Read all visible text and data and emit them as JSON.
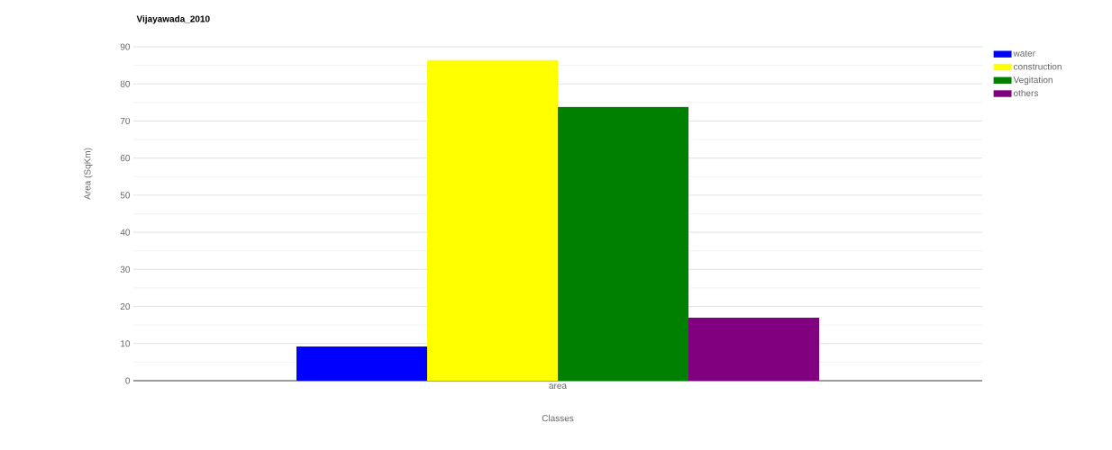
{
  "chart_data": {
    "type": "bar",
    "title": "Vijayawada_2010",
    "xlabel": "Classes",
    "ylabel": "Area (SqKm)",
    "categories": [
      "area"
    ],
    "series": [
      {
        "name": "water",
        "color": "#0000ff",
        "values": [
          9.2
        ]
      },
      {
        "name": "construction",
        "color": "#ffff00",
        "values": [
          86.4
        ]
      },
      {
        "name": "Vegitation",
        "color": "#008000",
        "values": [
          73.8
        ]
      },
      {
        "name": "others",
        "color": "#800080",
        "values": [
          17
        ]
      }
    ],
    "ylim": [
      0,
      90
    ],
    "yticks": [
      0,
      10,
      20,
      30,
      40,
      50,
      60,
      70,
      80,
      90
    ],
    "grid": "y",
    "legend": "top right"
  }
}
